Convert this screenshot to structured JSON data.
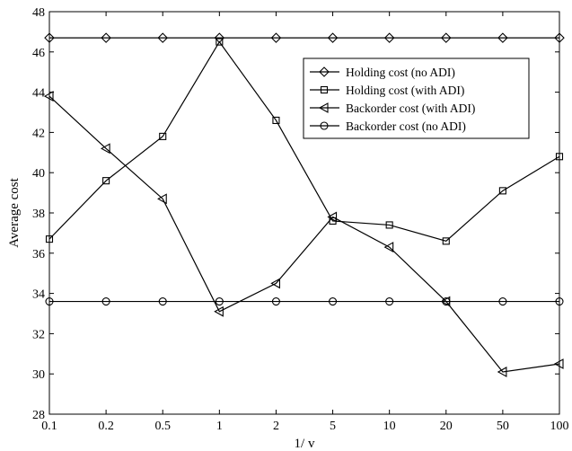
{
  "chart_data": {
    "type": "line",
    "title": "",
    "xlabel": "1/ v",
    "ylabel": "Average cost",
    "categories": [
      "0.1",
      "0.2",
      "0.5",
      "1",
      "2",
      "5",
      "10",
      "20",
      "50",
      "100"
    ],
    "yticks": [
      "28",
      "30",
      "32",
      "34",
      "36",
      "38",
      "40",
      "42",
      "44",
      "46",
      "48"
    ],
    "ylim": [
      28,
      48
    ],
    "grid": false,
    "legend_position": "top-right",
    "series": [
      {
        "name": "Holding cost (no ADI)",
        "marker": "diamond",
        "values": [
          46.7,
          46.7,
          46.7,
          46.7,
          46.7,
          46.7,
          46.7,
          46.7,
          46.7,
          46.7
        ]
      },
      {
        "name": "Holding cost (with ADI)",
        "marker": "square",
        "values": [
          36.7,
          39.6,
          41.8,
          46.5,
          42.6,
          37.6,
          37.4,
          36.6,
          39.1,
          40.8
        ]
      },
      {
        "name": "Backorder cost (with ADI)",
        "marker": "triangle-left",
        "values": [
          43.8,
          41.2,
          38.7,
          33.1,
          34.5,
          37.8,
          36.3,
          33.6,
          30.1,
          30.5
        ]
      },
      {
        "name": "Backorder cost (no ADI)",
        "marker": "circle",
        "values": [
          33.6,
          33.6,
          33.6,
          33.6,
          33.6,
          33.6,
          33.6,
          33.6,
          33.6,
          33.6
        ]
      }
    ]
  }
}
